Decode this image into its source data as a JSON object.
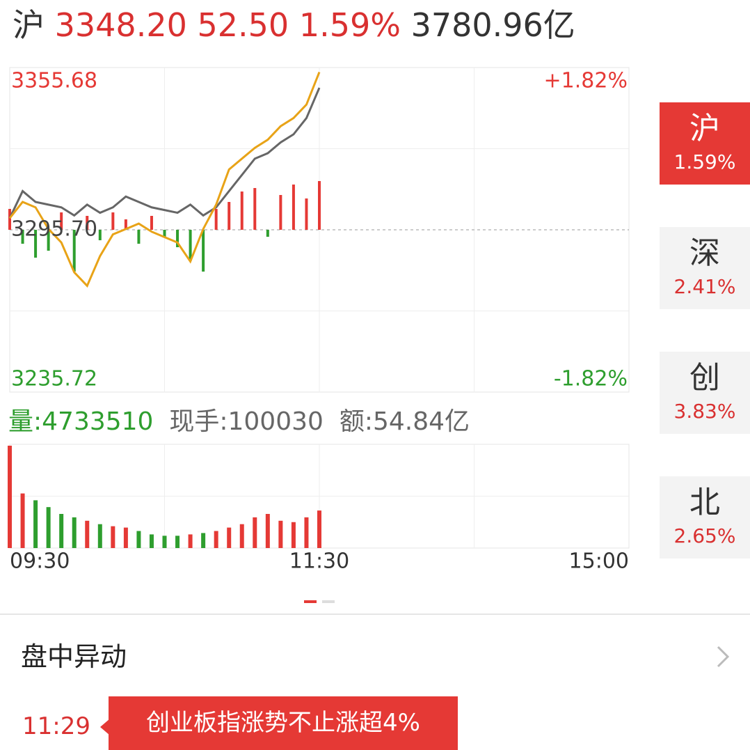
{
  "header": {
    "market": "沪",
    "price": "3348.20",
    "change": "52.50",
    "percent": "1.59%",
    "turnover": "3780.96亿"
  },
  "chart_data": {
    "type": "line",
    "ylim": [
      3235.72,
      3355.68
    ],
    "yticks": [
      {
        "value": 3355.68,
        "label": "3355.68"
      },
      {
        "value": 3295.7,
        "label": "3295.70"
      },
      {
        "value": 3235.72,
        "label": "3235.72"
      }
    ],
    "y2ticks": [
      {
        "value": 1.82,
        "label": "+1.82%"
      },
      {
        "value": -1.82,
        "label": "-1.82%"
      }
    ],
    "xlim": [
      0,
      240
    ],
    "xticks": [
      {
        "value": 0,
        "label": "09:30"
      },
      {
        "value": 120,
        "label": "11:30"
      },
      {
        "value": 240,
        "label": "15:00"
      }
    ],
    "series": [
      {
        "color": "#666666",
        "values": [
          3300,
          3310,
          3306,
          3305,
          3304,
          3301,
          3305,
          3302,
          3304,
          3308,
          3306,
          3304,
          3303,
          3302,
          3305,
          3301,
          3304,
          3310,
          3316,
          3322,
          3324,
          3328,
          3331,
          3337,
          3348.2
        ]
      },
      {
        "color": "#e8a317",
        "values": [
          3300,
          3306,
          3304,
          3296,
          3291,
          3280,
          3275,
          3286,
          3294,
          3296,
          3298,
          3295,
          3293,
          3291,
          3284,
          3296,
          3305,
          3318,
          3322,
          3326,
          3329,
          3334,
          3337,
          3342,
          3354
        ]
      }
    ],
    "flow": [
      30,
      -20,
      -40,
      -30,
      25,
      -60,
      20,
      -15,
      25,
      15,
      -20,
      20,
      -10,
      -25,
      -45,
      -60,
      30,
      40,
      55,
      60,
      -10,
      50,
      65,
      45,
      70
    ],
    "up_color": "#e53935",
    "down_color": "#2e9e2e"
  },
  "volume_chart": {
    "type": "bar",
    "values": [
      150,
      80,
      70,
      60,
      50,
      45,
      40,
      35,
      32,
      30,
      25,
      20,
      18,
      18,
      20,
      22,
      25,
      30,
      35,
      45,
      50,
      40,
      38,
      45,
      55
    ]
  },
  "volume_info": {
    "volume": "量:4733510",
    "hand": "现手:100030",
    "amount": "额:54.84亿"
  },
  "tabs": [
    {
      "name": "沪",
      "percent": "1.59%"
    },
    {
      "name": "深",
      "percent": "2.41%"
    },
    {
      "name": "创",
      "percent": "3.83%"
    },
    {
      "name": "北",
      "percent": "2.65%"
    }
  ],
  "section": {
    "title": "盘中异动",
    "events": [
      {
        "time": "11:29",
        "text": "创业板指涨势不止涨超4%"
      }
    ]
  }
}
